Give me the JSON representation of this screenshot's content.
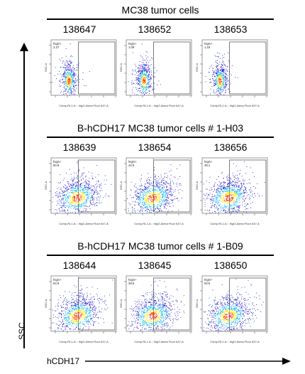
{
  "sections": [
    {
      "title": "MC38 tumor cells",
      "panels": [
        {
          "id": "138647",
          "gate_label": "hIgG+",
          "percent": "2.27",
          "pop": "low"
        },
        {
          "id": "138652",
          "gate_label": "hIgG+",
          "percent": "1.09",
          "pop": "low"
        },
        {
          "id": "138653",
          "gate_label": "hIgG+",
          "percent": "1.18",
          "pop": "low"
        }
      ]
    },
    {
      "title": "B-hCDH17 MC38 tumor cells # 1-H03",
      "panels": [
        {
          "id": "138639",
          "gate_label": "hIgG+",
          "percent": "50.9",
          "pop": "high"
        },
        {
          "id": "138654",
          "gate_label": "hIgG+",
          "percent": "44.9",
          "pop": "high"
        },
        {
          "id": "138656",
          "gate_label": "hIgG+",
          "percent": "39.1",
          "pop": "high"
        }
      ]
    },
    {
      "title": "B-hCDH17 MC38 tumor cells # 1-B09",
      "panels": [
        {
          "id": "138644",
          "gate_label": "hIgG+",
          "percent": "54.9",
          "pop": "high"
        },
        {
          "id": "138645",
          "gate_label": "hIgG+",
          "percent": "39.6",
          "pop": "high"
        },
        {
          "id": "138650",
          "gate_label": "hIgG+",
          "percent": "53.5",
          "pop": "high"
        }
      ]
    }
  ],
  "plot_xlabel": "Comp-RL1-A :: hIgG-Alexa Fluor 647-A",
  "plot_ylabel": "SSC-A",
  "axis_y_label": "SSC",
  "axis_x_label": "hCDH17",
  "colors": {
    "low": "#1414cc",
    "mid": "#00b4ff",
    "core": "#ffe600",
    "hot": "#ff2a00"
  }
}
